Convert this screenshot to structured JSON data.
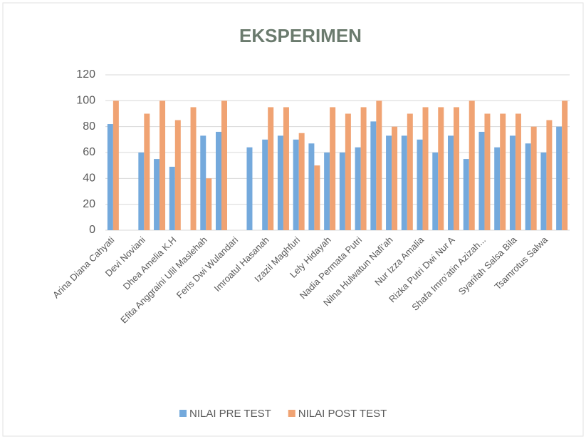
{
  "chart_data": {
    "type": "bar",
    "title": "EKSPERIMEN",
    "categories": [
      "Arina Diana Cahyati",
      null,
      "Devi Noviani",
      null,
      "Dhea Amelia K.H",
      null,
      "Efita Anggraini Ulil Maslehah",
      null,
      "Feris Dwi Wulandari",
      null,
      "Imroatul Hasanah",
      null,
      "Izazil Maghfuri",
      null,
      "Lely Hidayah",
      null,
      "Nadia Permata Putri",
      null,
      "Nilna Hulwatun Nafi’ah",
      null,
      "Nur Izza Amalia",
      null,
      "Rizka Putri Dwi Nur A",
      null,
      "Shafa Imro’atin Azizah...",
      null,
      "Syarifah Salsa Bila",
      null,
      "Tsamrotus Salwa",
      null
    ],
    "series": [
      {
        "name": "NILAI PRE TEST",
        "color": "#74a9dc",
        "values": [
          82,
          null,
          60,
          55,
          49,
          null,
          73,
          76,
          null,
          64,
          70,
          73,
          70,
          67,
          60,
          60,
          64,
          84,
          73,
          73,
          70,
          60,
          73,
          55,
          76,
          64,
          73,
          67,
          60,
          80
        ]
      },
      {
        "name": "NILAI POST TEST",
        "color": "#f0a373",
        "values": [
          100,
          null,
          90,
          100,
          85,
          95,
          40,
          100,
          null,
          null,
          95,
          95,
          75,
          50,
          95,
          90,
          95,
          100,
          80,
          90,
          95,
          95,
          95,
          100,
          90,
          90,
          90,
          80,
          85,
          100
        ]
      }
    ],
    "ylim": [
      0,
      120
    ],
    "yticks": [
      0,
      20,
      40,
      60,
      80,
      100,
      120
    ],
    "grid": true,
    "legend": "bottom"
  }
}
